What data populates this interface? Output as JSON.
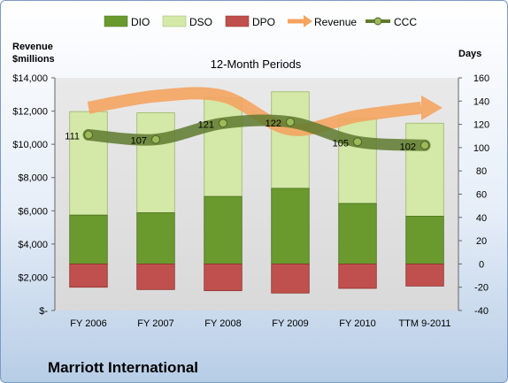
{
  "chart_data": {
    "type": "bar",
    "title": "12-Month Periods",
    "company": "Marriott International",
    "left_axis_label": [
      "Revenue",
      "$millions"
    ],
    "right_axis_label": "Days",
    "categories": [
      "FY 2006",
      "FY 2007",
      "FY 2008",
      "FY 2009",
      "FY 2010",
      "TTM 9-2011"
    ],
    "left_axis": {
      "min": 0,
      "max": 14000,
      "step": 2000,
      "tick_labels": [
        "$-",
        "$2,000",
        "$4,000",
        "$6,000",
        "$8,000",
        "$10,000",
        "$12,000",
        "$14,000"
      ]
    },
    "right_axis": {
      "min": -40,
      "max": 160,
      "step": 20,
      "tick_labels": [
        "-40",
        "-20",
        "0",
        "20",
        "40",
        "60",
        "80",
        "100",
        "120",
        "140",
        "160"
      ]
    },
    "legend": {
      "position": "top",
      "entries": [
        "DIO",
        "DSO",
        "DPO",
        "Revenue",
        "CCC"
      ]
    },
    "series": [
      {
        "name": "DIO",
        "axis": "right",
        "color": "#6a9a2e",
        "values": [
          42,
          44,
          58,
          65,
          52,
          41
        ]
      },
      {
        "name": "DSO",
        "axis": "right",
        "color": "#d4e8a8",
        "values": [
          131,
          130,
          143,
          148,
          125,
          121
        ]
      },
      {
        "name": "DPO",
        "axis": "right",
        "color": "#c0504d",
        "values": [
          -20,
          -22,
          -23,
          -25,
          -21,
          -19
        ]
      },
      {
        "name": "Revenue",
        "axis": "left",
        "color": "#f4a460",
        "values": [
          12200,
          12900,
          12900,
          10900,
          11700,
          12200
        ]
      },
      {
        "name": "CCC",
        "axis": "right",
        "color": "#5e7a2e",
        "values": [
          111,
          107,
          121,
          122,
          105,
          102
        ],
        "labels": [
          "111",
          "107",
          "121",
          "122",
          "105",
          "102"
        ]
      }
    ],
    "grid": false
  }
}
